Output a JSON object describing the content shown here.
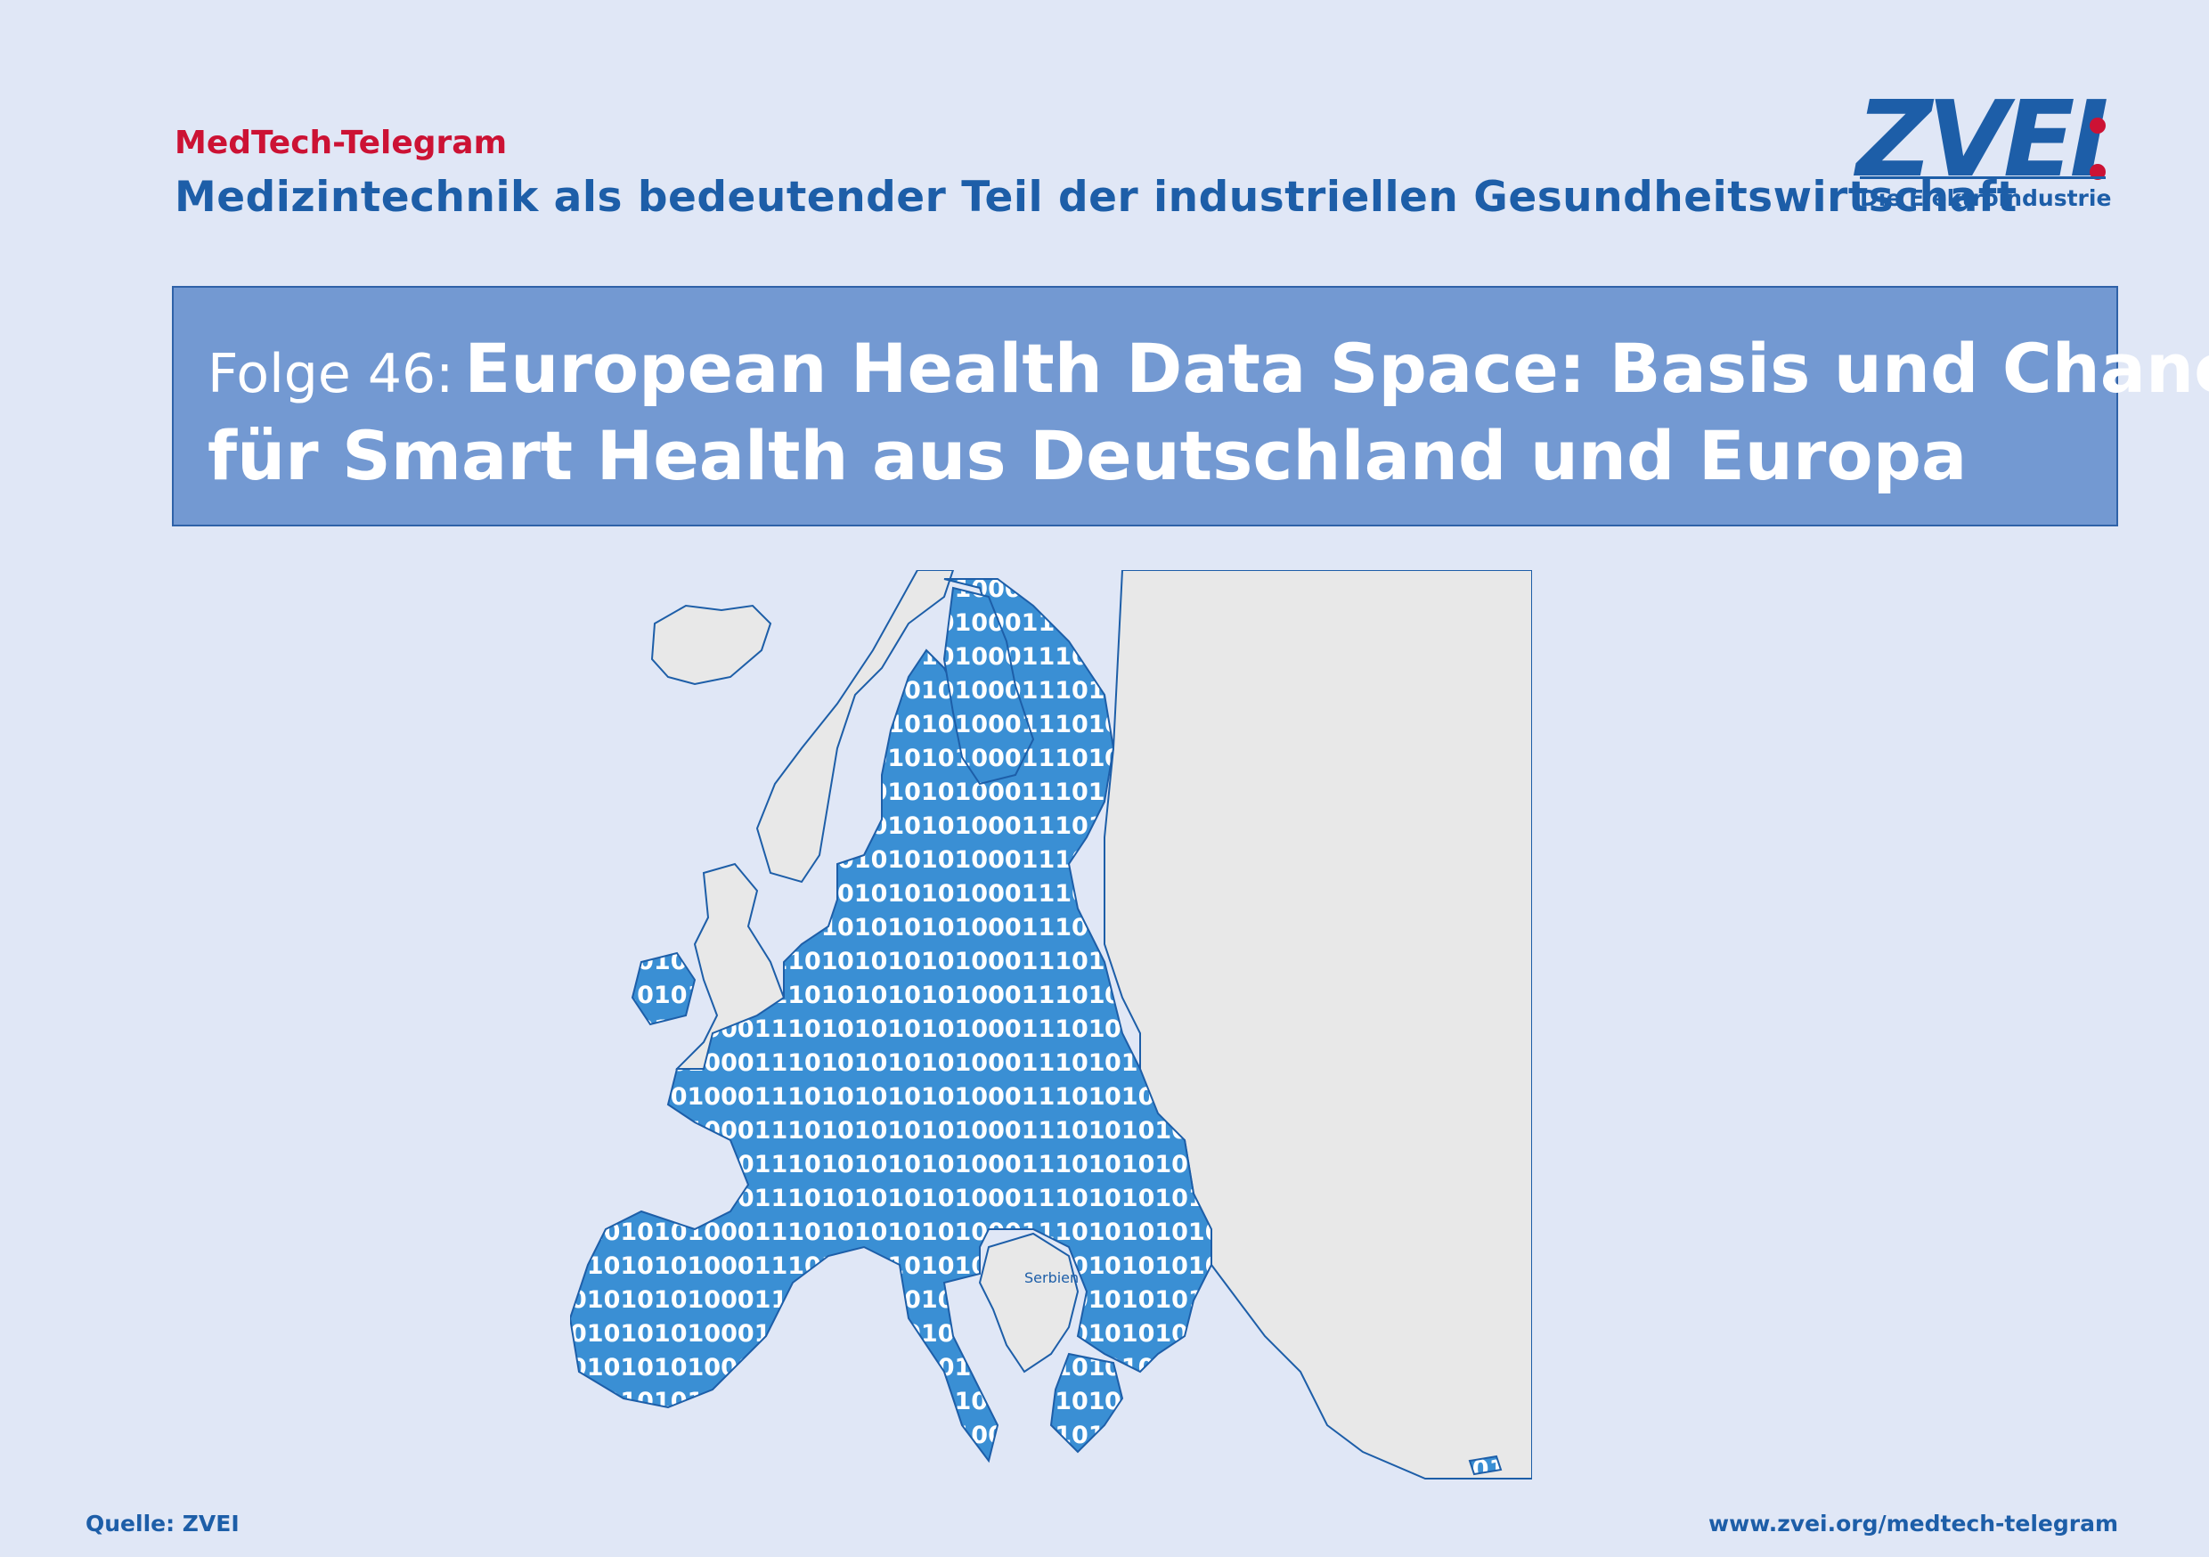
{
  "header": {
    "kicker": "MedTech-Telegram",
    "subtitle": "Medizintechnik als bedeutender Teil der industriellen Gesundheitswirtschaft"
  },
  "logo": {
    "word": "ZVEI",
    "tagline": "Die Elektroindustrie"
  },
  "banner": {
    "episode": "Folge 46:",
    "title_line1": "European Health Data Space: Basis und Chance",
    "title_line2": "für Smart Health aus Deutschland und Europa"
  },
  "map": {
    "binary_text": "0101010100011101010100011010101000111010",
    "label_serbia": "Serbien",
    "colors": {
      "eu_fill": "#3a8fd4",
      "non_eu_fill": "#e8e8e8",
      "border": "#1d5ea8",
      "binary_text": "#ffffff"
    }
  },
  "footer": {
    "source": "Quelle: ZVEI",
    "url": "www.zvei.org/medtech-telegram"
  },
  "colors": {
    "background": "#e0e7f6",
    "brand_blue": "#1d5ea8",
    "accent_red": "#cc1234",
    "banner_fill": "#7399d2"
  }
}
